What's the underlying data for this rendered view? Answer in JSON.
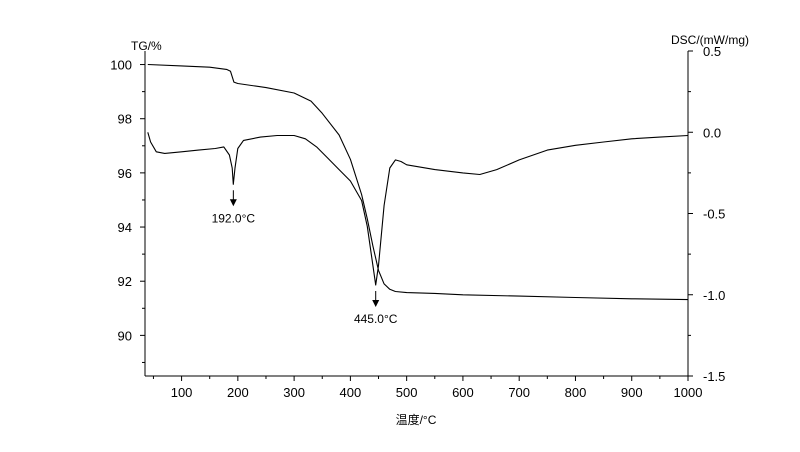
{
  "chart_data": {
    "type": "line",
    "title": "",
    "xlabel": "温度/°C",
    "ylabel_left": "TG/%",
    "ylabel_right": "DSC/(mW/mg)",
    "xlim": [
      35,
      1000
    ],
    "ylim_left": [
      88.5,
      100.5
    ],
    "ylim_right": [
      -1.5,
      0.5
    ],
    "x_ticks": [
      100,
      200,
      300,
      400,
      500,
      600,
      700,
      800,
      900,
      1000
    ],
    "y_ticks_left": [
      90,
      92,
      94,
      96,
      98,
      100
    ],
    "y_ticks_right": [
      -1.5,
      -1.0,
      -0.5,
      0.0,
      0.5
    ],
    "y_tick_labels_right": [
      "-1.5",
      "-1.0",
      "-0.5",
      "0.0",
      "0.5"
    ],
    "grid": false,
    "series": [
      {
        "axis": "left",
        "color": "#000000",
        "x": [
          40,
          100,
          150,
          180,
          187,
          190,
          193,
          200,
          250,
          300,
          330,
          350,
          380,
          400,
          420,
          430,
          440,
          450,
          460,
          470,
          480,
          500,
          550,
          600,
          700,
          800,
          900,
          1000
        ],
        "y": [
          100.0,
          99.95,
          99.9,
          99.82,
          99.75,
          99.55,
          99.35,
          99.3,
          99.15,
          98.95,
          98.65,
          98.2,
          97.4,
          96.5,
          95.2,
          94.3,
          93.3,
          92.4,
          91.9,
          91.7,
          91.62,
          91.58,
          91.55,
          91.5,
          91.45,
          91.4,
          91.35,
          91.32
        ]
      },
      {
        "axis": "right",
        "color": "#000000",
        "x": [
          40,
          45,
          55,
          70,
          100,
          130,
          160,
          175,
          185,
          190,
          192,
          195,
          200,
          210,
          240,
          270,
          300,
          320,
          340,
          360,
          380,
          400,
          420,
          430,
          440,
          445,
          450,
          460,
          470,
          480,
          490,
          500,
          550,
          600,
          630,
          660,
          700,
          750,
          800,
          850,
          900,
          950,
          1000
        ],
        "y": [
          0.0,
          -0.06,
          -0.12,
          -0.13,
          -0.12,
          -0.11,
          -0.1,
          -0.09,
          -0.14,
          -0.22,
          -0.32,
          -0.22,
          -0.1,
          -0.05,
          -0.03,
          -0.02,
          -0.02,
          -0.04,
          -0.09,
          -0.16,
          -0.23,
          -0.3,
          -0.42,
          -0.58,
          -0.82,
          -0.94,
          -0.82,
          -0.45,
          -0.22,
          -0.17,
          -0.18,
          -0.2,
          -0.23,
          -0.25,
          -0.26,
          -0.23,
          -0.17,
          -0.11,
          -0.08,
          -0.06,
          -0.04,
          -0.03,
          -0.02
        ]
      }
    ],
    "annotations": [
      {
        "text": "192.0°C",
        "x": 192,
        "y": -0.32,
        "axis": "right",
        "label_x": 192,
        "label_y": -0.42
      },
      {
        "text": "445.0°C",
        "x": 445,
        "y": -0.94,
        "axis": "right",
        "label_x": 445,
        "label_y": -1.1
      }
    ]
  }
}
